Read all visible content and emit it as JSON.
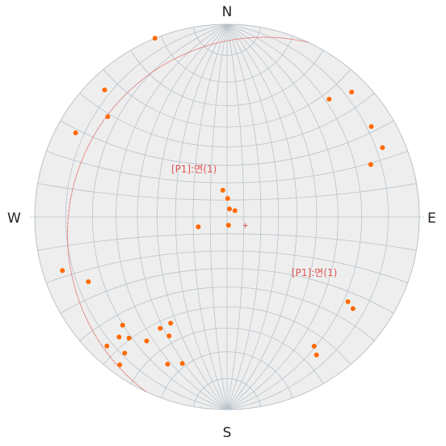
{
  "compass": {
    "north": "N",
    "south": "S",
    "east": "E",
    "west": "W"
  },
  "colors": {
    "background": "#ffffff",
    "net_fill": "#eeeeee",
    "grid": "#b9c3cb",
    "points": "#ff6a00",
    "plane": "#e05555",
    "text": "#222222"
  },
  "plane_labels": {
    "pole_label": "[P1]:면(1)",
    "great_circle_label": "[P1]:면(1)"
  },
  "net": {
    "type": "equal-angle stereonet",
    "grid_step_deg": 10
  },
  "plane": {
    "dip_direction_deg": 295,
    "dip_deg": 12
  },
  "poles": [
    {
      "trend": 338,
      "plunge": 0
    },
    {
      "trend": 316,
      "plunge": 5
    },
    {
      "trend": 310,
      "plunge": 12
    },
    {
      "trend": 299,
      "plunge": 6
    },
    {
      "trend": 45,
      "plunge": 5
    },
    {
      "trend": 41,
      "plunge": 12
    },
    {
      "trend": 58,
      "plunge": 7
    },
    {
      "trend": 66,
      "plunge": 7
    },
    {
      "trend": 70,
      "plunge": 13
    },
    {
      "trend": 351,
      "plunge": 74
    },
    {
      "trend": 2,
      "plunge": 79
    },
    {
      "trend": 17,
      "plunge": 85
    },
    {
      "trend": 52,
      "plunge": 84
    },
    {
      "trend": 170,
      "plunge": 85
    },
    {
      "trend": 251,
      "plunge": 72
    },
    {
      "trend": 252,
      "plunge": 6
    },
    {
      "trend": 245,
      "plunge": 13
    },
    {
      "trend": 223,
      "plunge": 5
    },
    {
      "trend": 222,
      "plunge": 10
    },
    {
      "trend": 224,
      "plunge": 14
    },
    {
      "trend": 219,
      "plunge": 12
    },
    {
      "trend": 217,
      "plunge": 7
    },
    {
      "trend": 216,
      "plunge": 3
    },
    {
      "trend": 213,
      "plunge": 15
    },
    {
      "trend": 211,
      "plunge": 22
    },
    {
      "trend": 208,
      "plunge": 26
    },
    {
      "trend": 206,
      "plunge": 21
    },
    {
      "trend": 202,
      "plunge": 11
    },
    {
      "trend": 197,
      "plunge": 13
    },
    {
      "trend": 147,
      "plunge": 9
    },
    {
      "trend": 146,
      "plunge": 12
    },
    {
      "trend": 125,
      "plunge": 15
    },
    {
      "trend": 126,
      "plunge": 12
    }
  ]
}
